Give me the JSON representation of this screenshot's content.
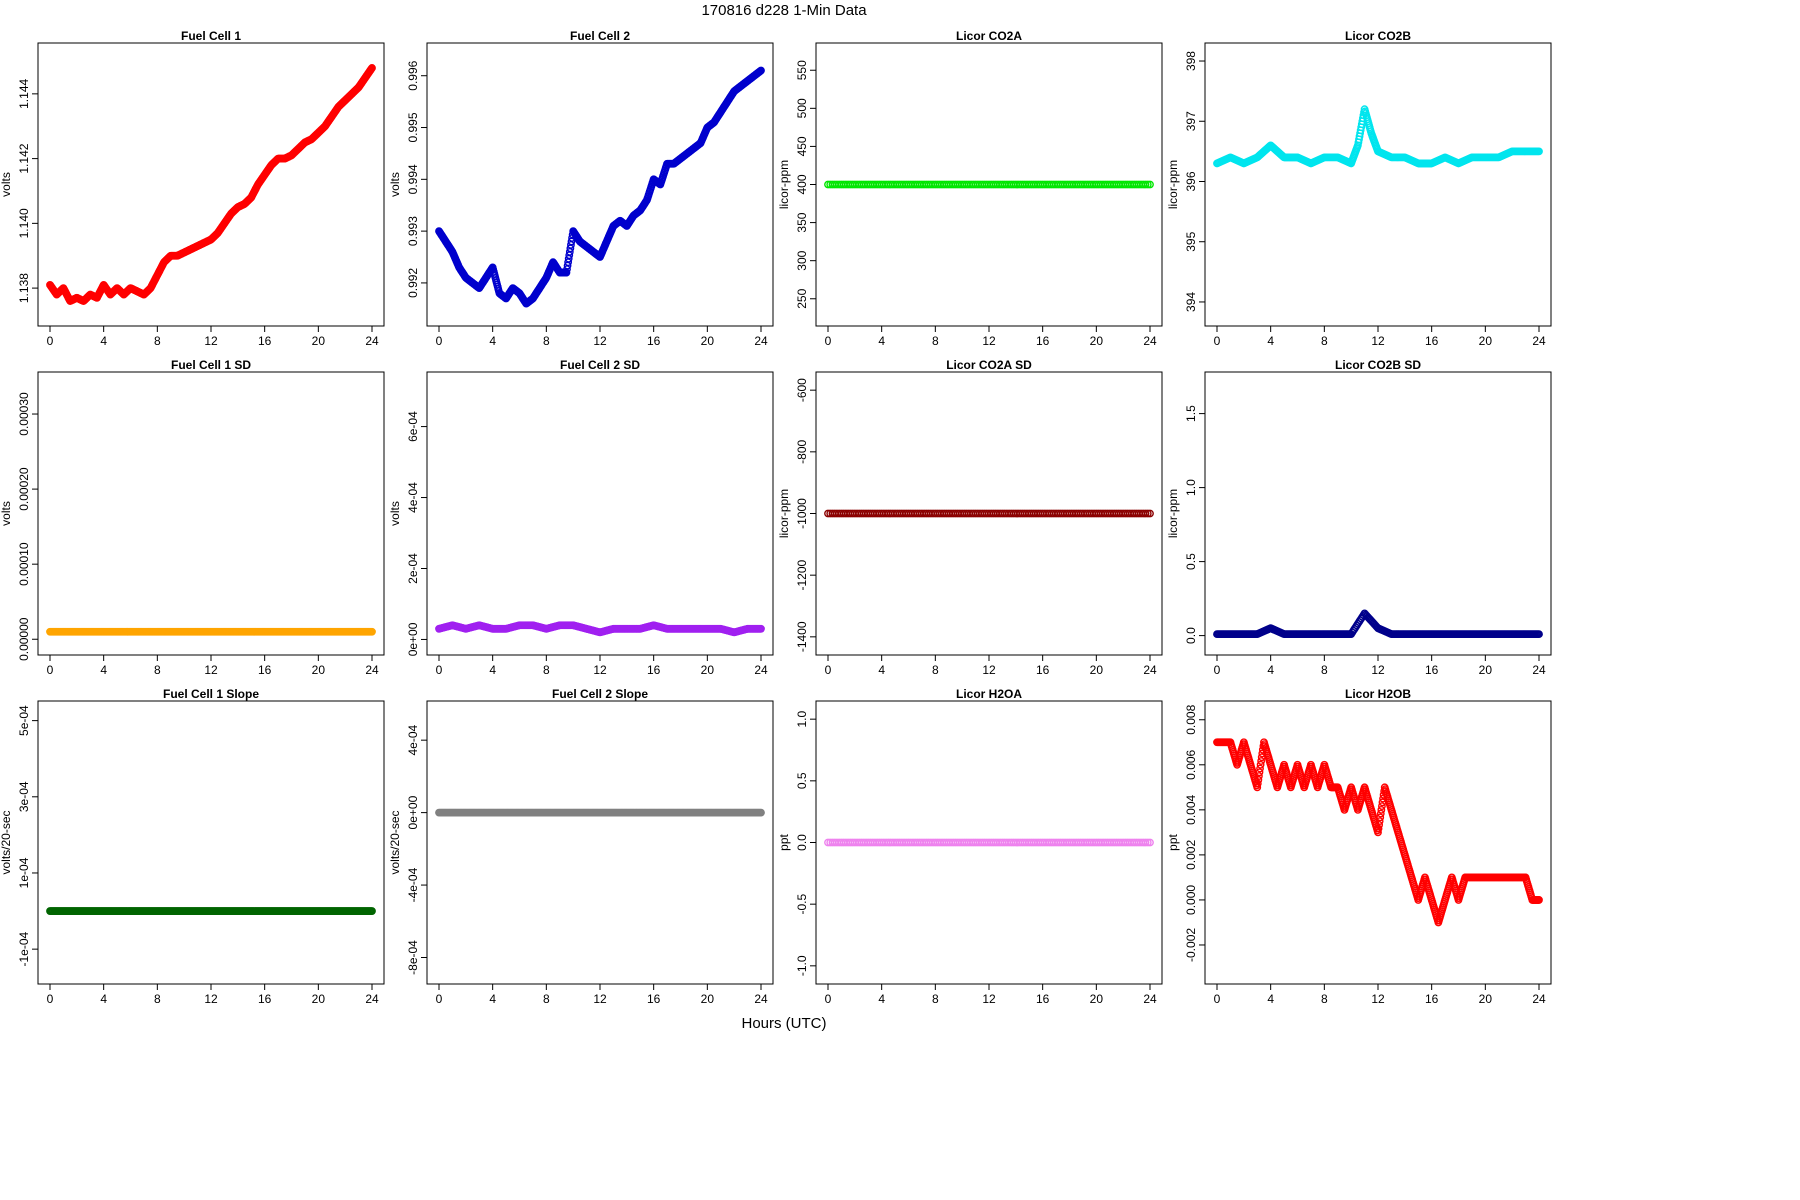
{
  "title": "170816   d228   1-Min Data",
  "xlabel": "Hours (UTC)",
  "chart_data": [
    {
      "type": "scatter",
      "title": "Fuel Cell 1",
      "xlabel": "",
      "ylabel": "volts",
      "color": "#ff0000",
      "xlim": [
        0,
        24
      ],
      "ylim": [
        1.1372,
        1.1452
      ],
      "xticks": [
        0,
        4,
        8,
        12,
        16,
        20,
        24
      ],
      "yticks": [
        1.138,
        1.14,
        1.142,
        1.144
      ],
      "ytick_labels": [
        "1.138",
        "1.140",
        "1.142",
        "1.144"
      ],
      "series": [
        {
          "x": [
            0,
            0.5,
            1,
            1.5,
            2,
            2.5,
            3,
            3.5,
            4,
            4.5,
            5,
            5.5,
            6,
            6.5,
            7,
            7.5,
            8,
            8.5,
            9,
            9.5,
            10,
            10.5,
            11,
            11.5,
            12,
            12.5,
            13,
            13.5,
            14,
            14.5,
            15,
            15.5,
            16,
            16.5,
            17,
            17.5,
            18,
            18.5,
            19,
            19.5,
            20,
            20.5,
            21,
            21.5,
            22,
            22.5,
            23,
            23.5,
            24
          ],
          "y": [
            1.1381,
            1.1378,
            1.138,
            1.1376,
            1.1377,
            1.1376,
            1.1378,
            1.1377,
            1.1381,
            1.1378,
            1.138,
            1.1378,
            1.138,
            1.1379,
            1.1378,
            1.138,
            1.1384,
            1.1388,
            1.139,
            1.139,
            1.1391,
            1.1392,
            1.1393,
            1.1394,
            1.1395,
            1.1397,
            1.14,
            1.1403,
            1.1405,
            1.1406,
            1.1408,
            1.1412,
            1.1415,
            1.1418,
            1.142,
            1.142,
            1.1421,
            1.1423,
            1.1425,
            1.1426,
            1.1428,
            1.143,
            1.1433,
            1.1436,
            1.1438,
            1.144,
            1.1442,
            1.1445,
            1.1448
          ]
        }
      ]
    },
    {
      "type": "scatter",
      "title": "Fuel Cell 2",
      "xlabel": "",
      "ylabel": "volts",
      "color": "#0000cd",
      "xlim": [
        0,
        24
      ],
      "ylim": [
        0.9914,
        0.9964
      ],
      "xticks": [
        0,
        4,
        8,
        12,
        16,
        20,
        24
      ],
      "yticks": [
        0.992,
        0.993,
        0.994,
        0.995,
        0.996
      ],
      "ytick_labels": [
        "0.992",
        "0.993",
        "0.994",
        "0.995",
        "0.996"
      ],
      "series": [
        {
          "x": [
            0,
            0.5,
            1,
            1.5,
            2,
            2.5,
            3,
            3.5,
            4,
            4.5,
            5,
            5.5,
            6,
            6.5,
            7,
            7.5,
            8,
            8.5,
            9,
            9.5,
            10,
            10.5,
            11,
            11.5,
            12,
            12.5,
            13,
            13.5,
            14,
            14.5,
            15,
            15.5,
            16,
            16.5,
            17,
            17.5,
            18,
            18.5,
            19,
            19.5,
            20,
            20.5,
            21,
            21.5,
            22,
            22.5,
            23,
            23.5,
            24
          ],
          "y": [
            0.993,
            0.9928,
            0.9926,
            0.9923,
            0.9921,
            0.992,
            0.9919,
            0.9921,
            0.9923,
            0.9918,
            0.9917,
            0.9919,
            0.9918,
            0.9916,
            0.9917,
            0.9919,
            0.9921,
            0.9924,
            0.9922,
            0.9922,
            0.993,
            0.9928,
            0.9927,
            0.9926,
            0.9925,
            0.9928,
            0.9931,
            0.9932,
            0.9931,
            0.9933,
            0.9934,
            0.9936,
            0.994,
            0.9939,
            0.9943,
            0.9943,
            0.9944,
            0.9945,
            0.9946,
            0.9947,
            0.995,
            0.9951,
            0.9953,
            0.9955,
            0.9957,
            0.9958,
            0.9959,
            0.996,
            0.9961
          ]
        }
      ]
    },
    {
      "type": "scatter",
      "title": "Licor CO2A",
      "xlabel": "",
      "ylabel": "licor-ppm",
      "color": "#00e600",
      "xlim": [
        0,
        24
      ],
      "ylim": [
        230,
        570
      ],
      "xticks": [
        0,
        4,
        8,
        12,
        16,
        20,
        24
      ],
      "yticks": [
        250,
        300,
        350,
        400,
        450,
        500,
        550
      ],
      "ytick_labels": [
        "250",
        "300",
        "350",
        "400",
        "450",
        "500",
        "550"
      ],
      "series": [
        {
          "x": [
            0,
            2,
            4,
            6,
            8,
            10,
            12,
            14,
            16,
            18,
            20,
            22,
            24
          ],
          "y": [
            400,
            400,
            400,
            400,
            400,
            400,
            400,
            400,
            400,
            400,
            400,
            400,
            400
          ]
        }
      ]
    },
    {
      "type": "scatter",
      "title": "Licor CO2B",
      "xlabel": "",
      "ylabel": "licor-ppm",
      "color": "#00e5ee",
      "xlim": [
        0,
        24
      ],
      "ylim": [
        393.8,
        398.1
      ],
      "xticks": [
        0,
        4,
        8,
        12,
        16,
        20,
        24
      ],
      "yticks": [
        394,
        395,
        396,
        397,
        398
      ],
      "ytick_labels": [
        "394",
        "395",
        "396",
        "397",
        "398"
      ],
      "series": [
        {
          "x": [
            0,
            1,
            2,
            3,
            3.5,
            4,
            4.5,
            5,
            5.5,
            6,
            7,
            8,
            9,
            10,
            10.5,
            11,
            11.5,
            12,
            13,
            14,
            15,
            15.5,
            16,
            17,
            18,
            19,
            20,
            21,
            22,
            23,
            24
          ],
          "y": [
            396.3,
            396.4,
            396.3,
            396.4,
            396.5,
            396.6,
            396.5,
            396.4,
            396.4,
            396.4,
            396.3,
            396.4,
            396.4,
            396.3,
            396.6,
            397.2,
            396.8,
            396.5,
            396.4,
            396.4,
            396.3,
            396.3,
            396.3,
            396.4,
            396.3,
            396.4,
            396.4,
            396.4,
            396.5,
            396.5,
            396.5
          ]
        }
      ]
    },
    {
      "type": "scatter",
      "title": "Fuel Cell 1 SD",
      "xlabel": "",
      "ylabel": "volts",
      "color": "#ffa500",
      "xlim": [
        0,
        24
      ],
      "ylim": [
        -5e-06,
        0.00034
      ],
      "xticks": [
        0,
        4,
        8,
        12,
        16,
        20,
        24
      ],
      "yticks": [
        0,
        0.0001,
        0.0002,
        0.0003
      ],
      "ytick_labels": [
        "0.00000",
        "0.00010",
        "0.00020",
        "0.00030"
      ],
      "series": [
        {
          "x": [
            0,
            1,
            2,
            3,
            4,
            5,
            6,
            7,
            8,
            9,
            10,
            11,
            12,
            13,
            14,
            15,
            16,
            17,
            18,
            19,
            20,
            21,
            22,
            23,
            24
          ],
          "y": [
            1e-05,
            1e-05,
            1e-05,
            1e-05,
            1e-05,
            1e-05,
            1e-05,
            1e-05,
            1e-05,
            1e-05,
            1e-05,
            1e-05,
            1e-05,
            1e-05,
            1e-05,
            1e-05,
            1e-05,
            1e-05,
            1e-05,
            1e-05,
            1e-05,
            1e-05,
            1e-05,
            1e-05,
            1e-05
          ]
        }
      ]
    },
    {
      "type": "scatter",
      "title": "Fuel Cell 2 SD",
      "xlabel": "",
      "ylabel": "volts",
      "color": "#a020f0",
      "xlim": [
        0,
        24
      ],
      "ylim": [
        -1e-05,
        0.00072
      ],
      "xticks": [
        0,
        4,
        8,
        12,
        16,
        20,
        24
      ],
      "yticks": [
        0,
        0.0002,
        0.0004,
        0.0006
      ],
      "ytick_labels": [
        "0e+00",
        "2e-04",
        "4e-04",
        "6e-04"
      ],
      "series": [
        {
          "x": [
            0,
            1,
            2,
            3,
            4,
            5,
            6,
            7,
            8,
            9,
            10,
            11,
            12,
            13,
            14,
            15,
            16,
            17,
            18,
            19,
            20,
            21,
            22,
            23,
            24
          ],
          "y": [
            3e-05,
            4e-05,
            3e-05,
            4e-05,
            3e-05,
            3e-05,
            4e-05,
            4e-05,
            3e-05,
            4e-05,
            4e-05,
            3e-05,
            2e-05,
            3e-05,
            3e-05,
            3e-05,
            4e-05,
            3e-05,
            3e-05,
            3e-05,
            3e-05,
            3e-05,
            2e-05,
            3e-05,
            3e-05
          ]
        }
      ]
    },
    {
      "type": "scatter",
      "title": "Licor CO2A SD",
      "xlabel": "",
      "ylabel": "licor-ppm",
      "color": "#8b0000",
      "xlim": [
        0,
        24
      ],
      "ylim": [
        -1420,
        -580
      ],
      "xticks": [
        0,
        4,
        8,
        12,
        16,
        20,
        24
      ],
      "yticks": [
        -1400,
        -1200,
        -1000,
        -800,
        -600
      ],
      "ytick_labels": [
        "-1400",
        "-1200",
        "-1000",
        "-800",
        "-600"
      ],
      "series": [
        {
          "x": [
            0,
            2,
            4,
            6,
            8,
            10,
            12,
            14,
            16,
            18,
            20,
            22,
            24
          ],
          "y": [
            -1000,
            -1000,
            -1000,
            -1000,
            -1000,
            -1000,
            -1000,
            -1000,
            -1000,
            -1000,
            -1000,
            -1000,
            -1000
          ]
        }
      ]
    },
    {
      "type": "scatter",
      "title": "Licor CO2B SD",
      "xlabel": "",
      "ylabel": "licor-ppm",
      "color": "#00008b",
      "xlim": [
        0,
        24
      ],
      "ylim": [
        -0.05,
        1.7
      ],
      "xticks": [
        0,
        4,
        8,
        12,
        16,
        20,
        24
      ],
      "yticks": [
        0,
        0.5,
        1.0,
        1.5
      ],
      "ytick_labels": [
        "0.0",
        "0.5",
        "1.0",
        "1.5"
      ],
      "series": [
        {
          "x": [
            0,
            1,
            2,
            3,
            4,
            5,
            6,
            7,
            8,
            9,
            10,
            11,
            12,
            13,
            14,
            15,
            16,
            17,
            18,
            19,
            20,
            21,
            22,
            23,
            24
          ],
          "y": [
            0.01,
            0.01,
            0.01,
            0.01,
            0.05,
            0.01,
            0.01,
            0.01,
            0.01,
            0.01,
            0.01,
            0.15,
            0.05,
            0.01,
            0.01,
            0.01,
            0.01,
            0.01,
            0.01,
            0.01,
            0.01,
            0.01,
            0.01,
            0.01,
            0.01
          ]
        }
      ]
    },
    {
      "type": "scatter",
      "title": "Fuel Cell 1 Slope",
      "xlabel": "",
      "ylabel": "volts/20-sec",
      "color": "#006400",
      "xlim": [
        0,
        24
      ],
      "ylim": [
        -0.00016,
        0.00052
      ],
      "xticks": [
        0,
        4,
        8,
        12,
        16,
        20,
        24
      ],
      "yticks": [
        -0.0001,
        0.0001,
        0.0003,
        0.0005
      ],
      "ytick_labels": [
        "-1e-04",
        "1e-04",
        "3e-04",
        "5e-04"
      ],
      "series": [
        {
          "x": [
            0,
            1,
            2,
            3,
            4,
            5,
            6,
            7,
            8,
            9,
            10,
            11,
            12,
            13,
            14,
            15,
            16,
            17,
            18,
            19,
            20,
            21,
            22,
            23,
            24
          ],
          "y": [
            0,
            0,
            0,
            0,
            0,
            0,
            0,
            0,
            0,
            0,
            0,
            0,
            0,
            0,
            0,
            0,
            0,
            0,
            0,
            0,
            0,
            0,
            0,
            0,
            0
          ]
        }
      ]
    },
    {
      "type": "scatter",
      "title": "Fuel Cell 2 Slope",
      "xlabel": "",
      "ylabel": "volts/20-sec",
      "color": "#808080",
      "xlim": [
        0,
        24
      ],
      "ylim": [
        -0.00088,
        0.00055
      ],
      "xticks": [
        0,
        4,
        8,
        12,
        16,
        20,
        24
      ],
      "yticks": [
        -0.0008,
        -0.0004,
        0,
        0.0004
      ],
      "ytick_labels": [
        "-8e-04",
        "-4e-04",
        "0e+00",
        "4e-04"
      ],
      "series": [
        {
          "x": [
            0,
            1,
            2,
            3,
            4,
            5,
            6,
            7,
            8,
            9,
            10,
            11,
            12,
            13,
            14,
            15,
            16,
            17,
            18,
            19,
            20,
            21,
            22,
            23,
            24
          ],
          "y": [
            0,
            0,
            0,
            0,
            0,
            0,
            0,
            0,
            0,
            0,
            0,
            0,
            0,
            0,
            0,
            0,
            0,
            0,
            0,
            0,
            0,
            0,
            0,
            0,
            0
          ]
        }
      ]
    },
    {
      "type": "scatter",
      "title": "Licor H2OA",
      "xlabel": "",
      "ylabel": "ppt",
      "color": "#ee82ee",
      "xlim": [
        0,
        24
      ],
      "ylim": [
        -1.05,
        1.05
      ],
      "xticks": [
        0,
        4,
        8,
        12,
        16,
        20,
        24
      ],
      "yticks": [
        -1.0,
        -0.5,
        0,
        0.5,
        1.0
      ],
      "ytick_labels": [
        "-1.0",
        "-0.5",
        "0.0",
        "0.5",
        "1.0"
      ],
      "series": [
        {
          "x": [
            0,
            2,
            4,
            6,
            8,
            10,
            12,
            14,
            16,
            18,
            20,
            22,
            24
          ],
          "y": [
            0,
            0,
            0,
            0,
            0,
            0,
            0,
            0,
            0,
            0,
            0,
            0,
            0
          ]
        }
      ]
    },
    {
      "type": "scatter",
      "title": "Licor H2OB",
      "xlabel": "",
      "ylabel": "ppt",
      "color": "#ff0000",
      "xlim": [
        0,
        24
      ],
      "ylim": [
        -0.0032,
        0.0083
      ],
      "xticks": [
        0,
        4,
        8,
        12,
        16,
        20,
        24
      ],
      "yticks": [
        -0.002,
        0,
        0.002,
        0.004,
        0.006,
        0.008
      ],
      "ytick_labels": [
        "-0.002",
        "0.000",
        "0.002",
        "0.004",
        "0.006",
        "0.008"
      ],
      "series": [
        {
          "x": [
            0,
            0.5,
            1,
            1.5,
            2,
            2.5,
            3,
            3.5,
            4,
            4.5,
            5,
            5.5,
            6,
            6.5,
            7,
            7.5,
            8,
            8.5,
            9,
            9.5,
            10,
            10.5,
            11,
            11.5,
            12,
            12.5,
            13,
            13.5,
            14,
            14.5,
            15,
            15.5,
            16,
            16.5,
            17,
            17.5,
            18,
            18.5,
            19,
            19.5,
            20,
            20.5,
            21,
            21.5,
            22,
            22.5,
            23,
            23.5,
            24
          ],
          "y": [
            0.007,
            0.007,
            0.007,
            0.006,
            0.007,
            0.006,
            0.005,
            0.007,
            0.006,
            0.005,
            0.006,
            0.005,
            0.006,
            0.005,
            0.006,
            0.005,
            0.006,
            0.005,
            0.005,
            0.004,
            0.005,
            0.004,
            0.005,
            0.004,
            0.003,
            0.005,
            0.004,
            0.003,
            0.002,
            0.001,
            0.0,
            0.001,
            0.0,
            -0.001,
            0.0,
            0.001,
            0.0,
            0.001,
            0.001,
            0.001,
            0.001,
            0.001,
            0.001,
            0.001,
            0.001,
            0.001,
            0.001,
            0.0,
            0.0
          ]
        }
      ]
    }
  ]
}
